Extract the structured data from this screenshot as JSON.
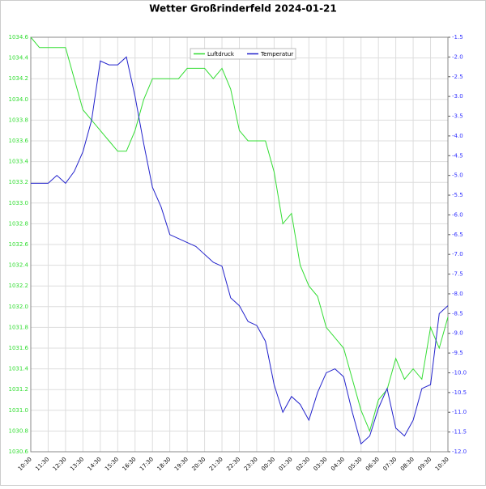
{
  "chart_data": {
    "type": "line",
    "title": "Wetter Großrinderfeld 2024-01-21",
    "x": [
      "10:30",
      "11:00",
      "11:30",
      "12:00",
      "12:30",
      "13:00",
      "13:30",
      "14:00",
      "14:30",
      "15:00",
      "15:30",
      "16:00",
      "16:30",
      "17:00",
      "17:30",
      "18:00",
      "18:30",
      "19:00",
      "19:30",
      "20:00",
      "20:30",
      "21:00",
      "21:30",
      "22:00",
      "22:30",
      "23:00",
      "23:30",
      "00:00",
      "00:30",
      "01:00",
      "01:30",
      "02:00",
      "02:30",
      "03:00",
      "03:30",
      "04:00",
      "04:30",
      "05:00",
      "05:30",
      "06:00",
      "06:30",
      "07:00",
      "07:30",
      "08:00",
      "08:30",
      "09:00",
      "09:30",
      "10:00",
      "10:30"
    ],
    "series": [
      {
        "name": "Luftdruck",
        "color": "#33dd33",
        "axis": "y",
        "values": [
          1034.6,
          1034.5,
          1034.5,
          1034.5,
          1034.5,
          1034.2,
          1033.9,
          1033.8,
          1033.7,
          1033.6,
          1033.5,
          1033.5,
          1033.7,
          1034.0,
          1034.2,
          1034.2,
          1034.2,
          1034.2,
          1034.3,
          1034.3,
          1034.3,
          1034.2,
          1034.3,
          1034.1,
          1033.7,
          1033.6,
          1033.6,
          1033.6,
          1033.3,
          1032.8,
          1032.9,
          1032.4,
          1032.2,
          1032.1,
          1031.8,
          1031.7,
          1031.6,
          1031.3,
          1031.0,
          1030.8,
          1031.1,
          1031.2,
          1031.5,
          1031.3,
          1031.4,
          1031.3,
          1031.8,
          1031.6,
          1031.9
        ]
      },
      {
        "name": "Temperatur",
        "color": "#2222cc",
        "axis": "y2",
        "values": [
          -5.2,
          -5.2,
          -5.2,
          -5.0,
          -5.2,
          -4.9,
          -4.4,
          -3.6,
          -2.1,
          -2.2,
          -2.2,
          -2.0,
          -3.0,
          -4.2,
          -5.3,
          -5.8,
          -6.5,
          -6.6,
          -6.7,
          -6.8,
          -7.0,
          -7.2,
          -7.3,
          -8.1,
          -8.3,
          -8.7,
          -8.8,
          -9.2,
          -10.3,
          -11.0,
          -10.6,
          -10.8,
          -11.2,
          -10.5,
          -10.0,
          -9.9,
          -10.1,
          -11.0,
          -11.8,
          -11.6,
          -10.9,
          -10.4,
          -11.4,
          -11.6,
          -11.2,
          -10.4,
          -10.3,
          -8.5,
          -8.3
        ]
      }
    ],
    "ylim": [
      1030.6,
      1034.6
    ],
    "yticks": [
      1030.6,
      1030.8,
      {
        "value": 1031,
        "label": "1031.0"
      },
      1031.2,
      1031.4,
      1031.6,
      1031.8,
      {
        "value": 1032,
        "label": "1032.0"
      },
      1032.2,
      1032.4,
      1032.6,
      1032.8,
      {
        "value": 1033,
        "label": "1033.0"
      },
      1033.2,
      1033.4,
      1033.6,
      1033.8,
      {
        "value": 1034,
        "label": "1034.0"
      },
      1034.2,
      1034.4,
      1034.6
    ],
    "y2lim": [
      -12,
      -1.5
    ],
    "y2ticks": [
      {
        "value": -12,
        "label": "-12.0"
      },
      -11.5,
      {
        "value": -11,
        "label": "-11.0"
      },
      -10.5,
      {
        "value": -10,
        "label": "-10.0"
      },
      -9.5,
      {
        "value": -9,
        "label": "-9.0"
      },
      -8.5,
      {
        "value": -8,
        "label": "-8.0"
      },
      -7.5,
      {
        "value": -7,
        "label": "-7.0"
      },
      -6.5,
      {
        "value": -6,
        "label": "-6.0"
      },
      -5.5,
      {
        "value": -5,
        "label": "-5.0"
      },
      -4.5,
      {
        "value": -4,
        "label": "-4.0"
      },
      -3.5,
      {
        "value": -3,
        "label": "-3.0"
      },
      -2.5,
      {
        "value": -2,
        "label": "-2.0"
      },
      -1.5
    ],
    "grid": true,
    "legend": "top"
  }
}
